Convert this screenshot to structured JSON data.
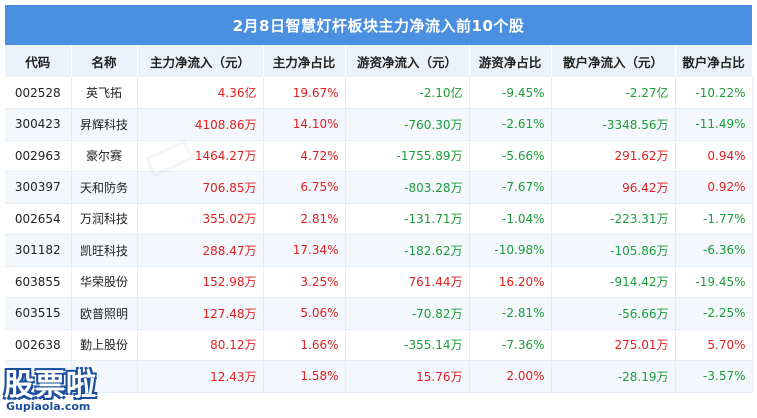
{
  "title": "2月8日智慧灯杆板块主力净流入前10个股",
  "chart_data": {
    "type": "table",
    "columns": [
      "代码",
      "名称",
      "主力净流入（元）",
      "主力净占比",
      "游资净流入（元）",
      "游资净占比",
      "散户净流入（元）",
      "散户净占比"
    ],
    "rows": [
      [
        "002528",
        "英飞拓",
        "4.36亿",
        "19.67%",
        "-2.10亿",
        "-9.45%",
        "-2.27亿",
        "-10.22%"
      ],
      [
        "300423",
        "昇辉科技",
        "4108.86万",
        "14.10%",
        "-760.30万",
        "-2.61%",
        "-3348.56万",
        "-11.49%"
      ],
      [
        "002963",
        "豪尔赛",
        "1464.27万",
        "4.72%",
        "-1755.89万",
        "-5.66%",
        "291.62万",
        "0.94%"
      ],
      [
        "300397",
        "天和防务",
        "706.85万",
        "6.75%",
        "-803.28万",
        "-7.67%",
        "96.42万",
        "0.92%"
      ],
      [
        "002654",
        "万润科技",
        "355.02万",
        "2.81%",
        "-131.71万",
        "-1.04%",
        "-223.31万",
        "-1.77%"
      ],
      [
        "301182",
        "凯旺科技",
        "288.47万",
        "17.34%",
        "-182.62万",
        "-10.98%",
        "-105.86万",
        "-6.36%"
      ],
      [
        "603855",
        "华荣股份",
        "152.98万",
        "3.25%",
        "761.44万",
        "16.20%",
        "-914.42万",
        "-19.45%"
      ],
      [
        "603515",
        "欧普照明",
        "127.48万",
        "5.06%",
        "-70.82万",
        "-2.81%",
        "-56.66万",
        "-2.25%"
      ],
      [
        "002638",
        "勤上股份",
        "80.12万",
        "1.66%",
        "-355.14万",
        "-7.36%",
        "275.01万",
        "5.70%"
      ],
      [
        "",
        "",
        "12.43万",
        "1.58%",
        "15.76万",
        "2.00%",
        "-28.19万",
        "-3.57%"
      ]
    ]
  },
  "colors": {
    "header_bg": "#4a8fe0",
    "col_header_bg": "#eaf2fc",
    "positive": "#e02020",
    "negative": "#1a9c3a"
  },
  "logo": {
    "main": "股票啦",
    "sub": "Gupiaola.com"
  }
}
